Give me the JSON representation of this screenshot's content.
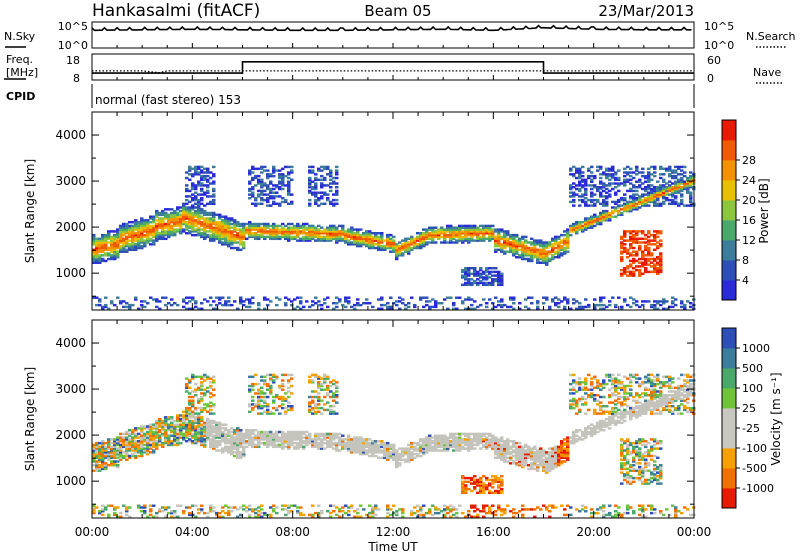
{
  "header": {
    "station": "Hankasalmi (fitACF)",
    "beam": "Beam 05",
    "date": "23/Mar/2013"
  },
  "noise_panel": {
    "left_label": "N.Sky",
    "left_ticks": [
      "10^5",
      "10^0"
    ],
    "right_ticks": [
      "10^5",
      "10^0"
    ],
    "right_label": "N.Search"
  },
  "freq_panel": {
    "left_label_1": "Freq.",
    "left_label_2": "[MHz]",
    "left_ticks": [
      "18",
      "8"
    ],
    "right_ticks": [
      "60",
      "0"
    ],
    "right_label": "Nave",
    "cpid_label": "CPID",
    "mode_text": "normal (fast stereo) 153"
  },
  "colors": {
    "power_scale": [
      "#2a2ad8",
      "#2f4fb8",
      "#3c7d9c",
      "#4aa86b",
      "#8cc63f",
      "#e8c000",
      "#f29200",
      "#f05a00",
      "#e81b00"
    ],
    "velocity_scale": [
      "#2f4fb8",
      "#3c7d9c",
      "#4aa86b",
      "#6fc43a",
      "#c8c8c0",
      "#c8c8c0",
      "#f4a000",
      "#f07000",
      "#e81b00"
    ],
    "ground_scatter": "#c4c4bc"
  },
  "chart_data": [
    {
      "type": "line",
      "panel": "noise",
      "series": [
        {
          "name": "N.Sky",
          "x": [
            "00:00",
            "02:00",
            "04:00",
            "06:00",
            "08:00",
            "10:00",
            "12:00",
            "14:00",
            "16:00",
            "18:00",
            "20:00",
            "22:00",
            "24:00"
          ],
          "values": [
            3.4,
            3.5,
            3.6,
            3.5,
            3.4,
            3.4,
            3.5,
            3.6,
            3.4,
            3.9,
            3.6,
            3.5,
            3.5
          ]
        }
      ]
    },
    {
      "type": "line",
      "panel": "frequency",
      "series": [
        {
          "name": "Freq.",
          "x": [
            "00:00",
            "02:00",
            "02:40",
            "03:00",
            "06:00",
            "18:00",
            "24:00"
          ],
          "values": [
            11.5,
            11.5,
            10.8,
            11.5,
            11.5,
            11.5,
            11.5
          ]
        },
        {
          "name": "Nave",
          "x": [
            "00:00",
            "06:00",
            "06:00",
            "18:00",
            "18:00",
            "24:00"
          ],
          "values": [
            16,
            16,
            42,
            42,
            16,
            16
          ]
        }
      ]
    },
    {
      "type": "heatmap",
      "panel": "power",
      "xlabel": "",
      "ylabel": "Slant Range [km]",
      "xlim": [
        0,
        24
      ],
      "ylim": [
        200,
        4500
      ],
      "yticks": [
        "1000",
        "2000",
        "3000",
        "4000"
      ],
      "colorbar": {
        "label": "Power [dB]",
        "ticks": [
          "4",
          "8",
          "12",
          "16",
          "20",
          "24",
          "28"
        ]
      }
    },
    {
      "type": "heatmap",
      "panel": "velocity",
      "xlabel": "Time UT",
      "ylabel": "Slant Range [km]",
      "xlim": [
        0,
        24
      ],
      "ylim": [
        200,
        4500
      ],
      "xticks": [
        "00:00",
        "04:00",
        "08:00",
        "12:00",
        "16:00",
        "20:00",
        "00:00"
      ],
      "yticks": [
        "1000",
        "2000",
        "3000",
        "4000"
      ],
      "colorbar": {
        "label": "Velocity [m s⁻¹]",
        "ticks": [
          "1000",
          "500",
          "100",
          "25",
          "-25",
          "-100",
          "-500",
          "-1000"
        ]
      }
    }
  ]
}
